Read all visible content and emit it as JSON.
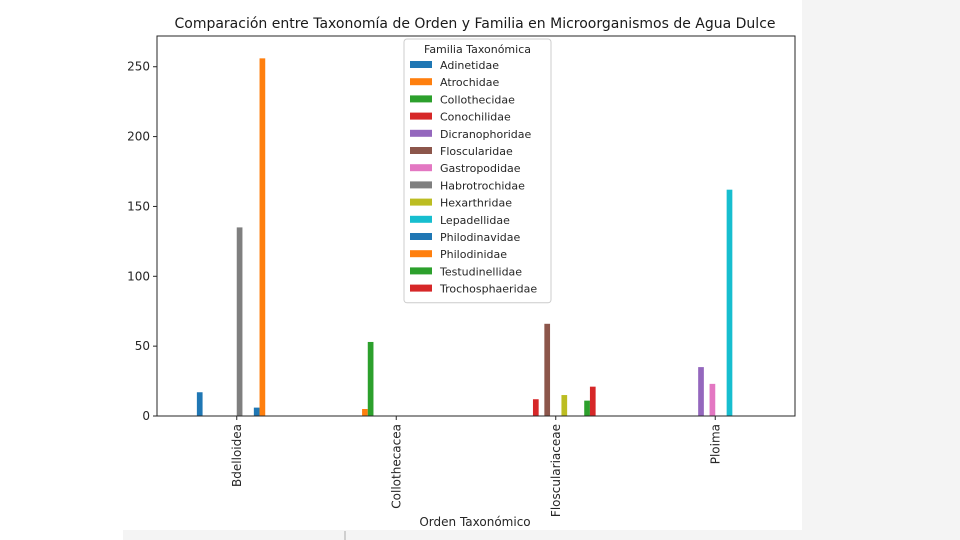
{
  "chart_data": {
    "type": "bar",
    "title": "Comparación entre Taxonomía de Orden y Familia en Microorganismos de Agua Dulce",
    "xlabel": "Orden Taxonómico",
    "ylabel": "",
    "ylim": [
      0,
      272
    ],
    "yticks": [
      0,
      50,
      100,
      150,
      200,
      250
    ],
    "categories": [
      "Bdelloidea",
      "Collothecacea",
      "Flosculariaceae",
      "Ploima"
    ],
    "legend_title": "Familia Taxonómica",
    "legend_position": "upper center",
    "grid": false,
    "series": [
      {
        "name": "Adinetidae",
        "color": "#1f77b4",
        "values": [
          17,
          0,
          0,
          0
        ]
      },
      {
        "name": "Atrochidae",
        "color": "#ff7f0e",
        "values": [
          0,
          5,
          0,
          0
        ]
      },
      {
        "name": "Collothecidae",
        "color": "#2ca02c",
        "values": [
          0,
          53,
          0,
          0
        ]
      },
      {
        "name": "Conochilidae",
        "color": "#d62728",
        "values": [
          0,
          0,
          12,
          0
        ]
      },
      {
        "name": "Dicranophoridae",
        "color": "#9467bd",
        "values": [
          0,
          0,
          0,
          35
        ]
      },
      {
        "name": "Floscularidae",
        "color": "#8c564b",
        "values": [
          0,
          0,
          66,
          0
        ]
      },
      {
        "name": "Gastropodidae",
        "color": "#e377c2",
        "values": [
          0,
          0,
          0,
          23
        ]
      },
      {
        "name": "Habrotrochidae",
        "color": "#7f7f7f",
        "values": [
          135,
          0,
          0,
          0
        ]
      },
      {
        "name": "Hexarthridae",
        "color": "#bcbd22",
        "values": [
          0,
          0,
          15,
          0
        ]
      },
      {
        "name": "Lepadellidae",
        "color": "#17becf",
        "values": [
          0,
          0,
          0,
          162
        ]
      },
      {
        "name": "Philodinavidae",
        "color": "#1f77b4",
        "values": [
          6,
          0,
          0,
          0
        ]
      },
      {
        "name": "Philodinidae",
        "color": "#ff7f0e",
        "values": [
          256,
          0,
          0,
          0
        ]
      },
      {
        "name": "Testudinellidae",
        "color": "#2ca02c",
        "values": [
          0,
          0,
          11,
          0
        ]
      },
      {
        "name": "Trochosphaeridae",
        "color": "#d62728",
        "values": [
          0,
          0,
          21,
          0
        ]
      }
    ]
  }
}
